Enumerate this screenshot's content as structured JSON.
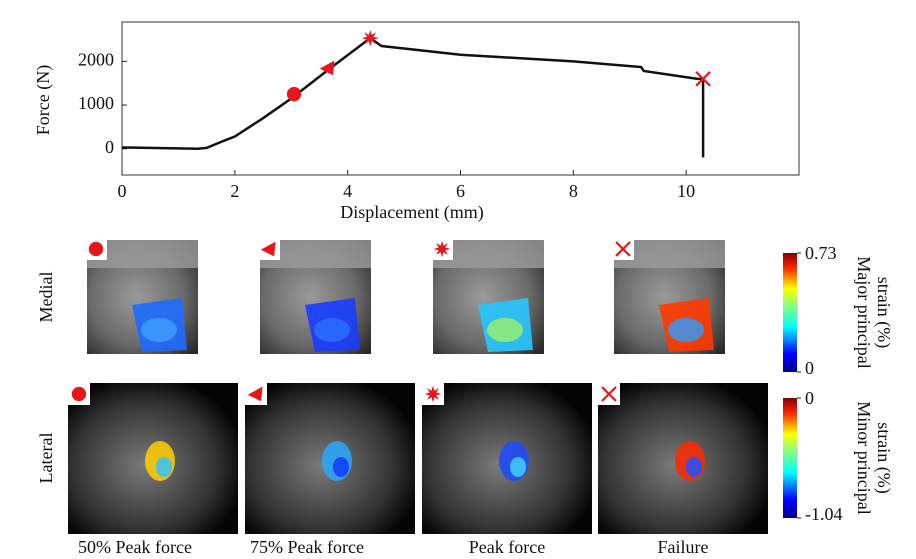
{
  "chart_data": {
    "type": "line",
    "x_label": "Displacement (mm)",
    "y_label": "Force (N)",
    "x": [
      0,
      1.35,
      1.5,
      1.8,
      2,
      2.5,
      3,
      3.7,
      4.4,
      4.6,
      6,
      8,
      9.2,
      9.25,
      10.2,
      10.3,
      10.3,
      10.3
    ],
    "series": [
      {
        "color": "#111111",
        "values": [
          30,
          0,
          20,
          180,
          280,
          700,
          1150,
          1850,
          2530,
          2350,
          2150,
          2000,
          1870,
          1780,
          1600,
          1600,
          1000,
          -200
        ]
      }
    ],
    "markers": [
      {
        "x": 3.05,
        "y": 1250,
        "shape": "circle"
      },
      {
        "x": 3.65,
        "y": 1850,
        "shape": "triangle"
      },
      {
        "x": 4.4,
        "y": 2530,
        "shape": "star"
      },
      {
        "x": 10.3,
        "y": 1600,
        "shape": "cross"
      }
    ],
    "marker_color": "#e8161b",
    "xlim": [
      0,
      12
    ],
    "ylim": [
      -600,
      2900
    ],
    "xticks": [
      0,
      2,
      4,
      6,
      8,
      10
    ],
    "yticks": [
      0,
      1000,
      2000
    ]
  },
  "panels": {
    "rows": [
      "Medial",
      "Lateral"
    ],
    "columns": [
      "50% Peak force",
      "75% Peak force",
      "Peak force",
      "Failure"
    ],
    "colorbars": [
      {
        "title_lines": [
          "Major principal",
          "strain (%)"
        ],
        "lim": [
          0,
          0.73
        ],
        "ticks": [
          0,
          0.73
        ]
      },
      {
        "title_lines": [
          "Minor principal",
          "strain (%)"
        ],
        "lim": [
          -1.04,
          0
        ],
        "ticks": [
          -1.04,
          0
        ]
      }
    ]
  }
}
